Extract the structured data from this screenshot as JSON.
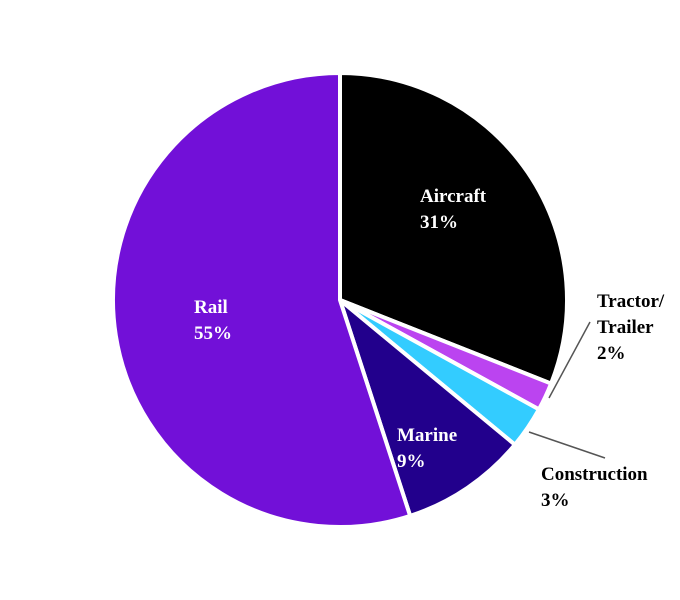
{
  "chart_data": {
    "type": "pie",
    "title": "",
    "slices": [
      {
        "label_lines": [
          "Aircraft"
        ],
        "value_label": "31%",
        "value": 31,
        "color": "#000000",
        "label_color": "#ffffff"
      },
      {
        "label_lines": [
          "Tractor/",
          "Trailer"
        ],
        "value_label": "2%",
        "value": 2,
        "color": "#bb44f0",
        "label_color": "#000000"
      },
      {
        "label_lines": [
          "Construction"
        ],
        "value_label": "3%",
        "value": 3,
        "color": "#33ccff",
        "label_color": "#000000"
      },
      {
        "label_lines": [
          "Marine"
        ],
        "value_label": "9%",
        "value": 9,
        "color": "#22008c",
        "label_color": "#ffffff"
      },
      {
        "label_lines": [
          "Rail"
        ],
        "value_label": "55%",
        "value": 55,
        "color": "#7210d8",
        "label_color": "#ffffff"
      }
    ],
    "start_angle_deg": 0,
    "direction": "clockwise",
    "slice_border_color": "#ffffff",
    "legend": "none"
  }
}
